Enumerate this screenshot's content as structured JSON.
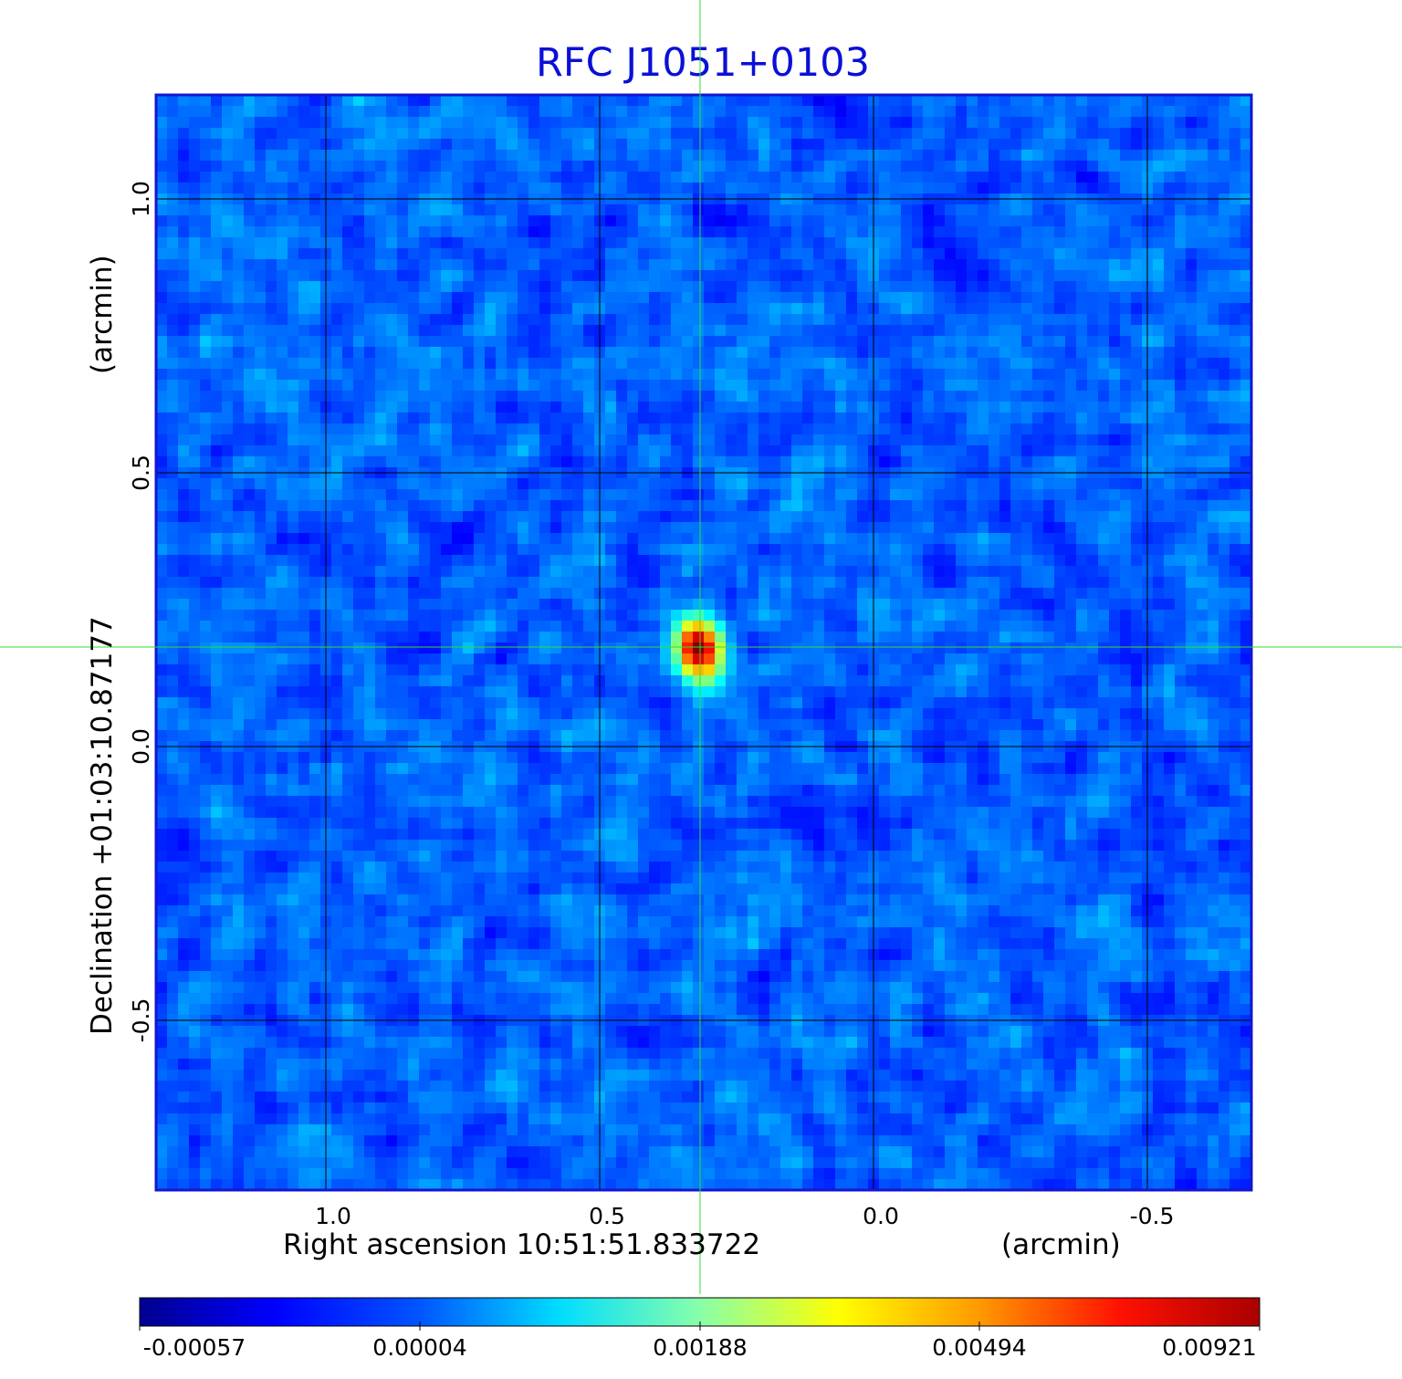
{
  "chart_data": {
    "type": "heatmap",
    "title": "RFC J1051+0103",
    "xlabel": "Right ascension  10:51:51.833722",
    "xunit": "(arcmin)",
    "ylabel": "Declination  +01:03:10.87177",
    "yunit": "(arcmin)",
    "xlim": [
      1.31,
      -0.69
    ],
    "ylim": [
      -0.81,
      1.19
    ],
    "x_ticks": [
      1.0,
      0.5,
      0.0,
      -0.5
    ],
    "x_tick_labels": [
      "1.0",
      "0.5",
      "0.0",
      "-0.5"
    ],
    "y_ticks": [
      -0.5,
      0.0,
      0.5,
      1.0
    ],
    "y_tick_labels": [
      "-0.5",
      "0.0",
      "0.5",
      "1.0"
    ],
    "grid": true,
    "source_position": {
      "x": 0.32,
      "y": 0.18
    },
    "peak_value": 0.00921,
    "colormap": "jet",
    "colorbar": {
      "ticks": [
        -0.00057,
        4e-05,
        0.00188,
        0.00494,
        0.00921
      ],
      "tick_labels": [
        "-0.00057",
        "0.00004",
        "0.00188",
        "0.00494",
        "0.00921"
      ]
    }
  },
  "colors": {
    "title": "#0b10d6",
    "frame": "#1515d0",
    "crosshair": "#33dd33",
    "grid": "#000000"
  }
}
